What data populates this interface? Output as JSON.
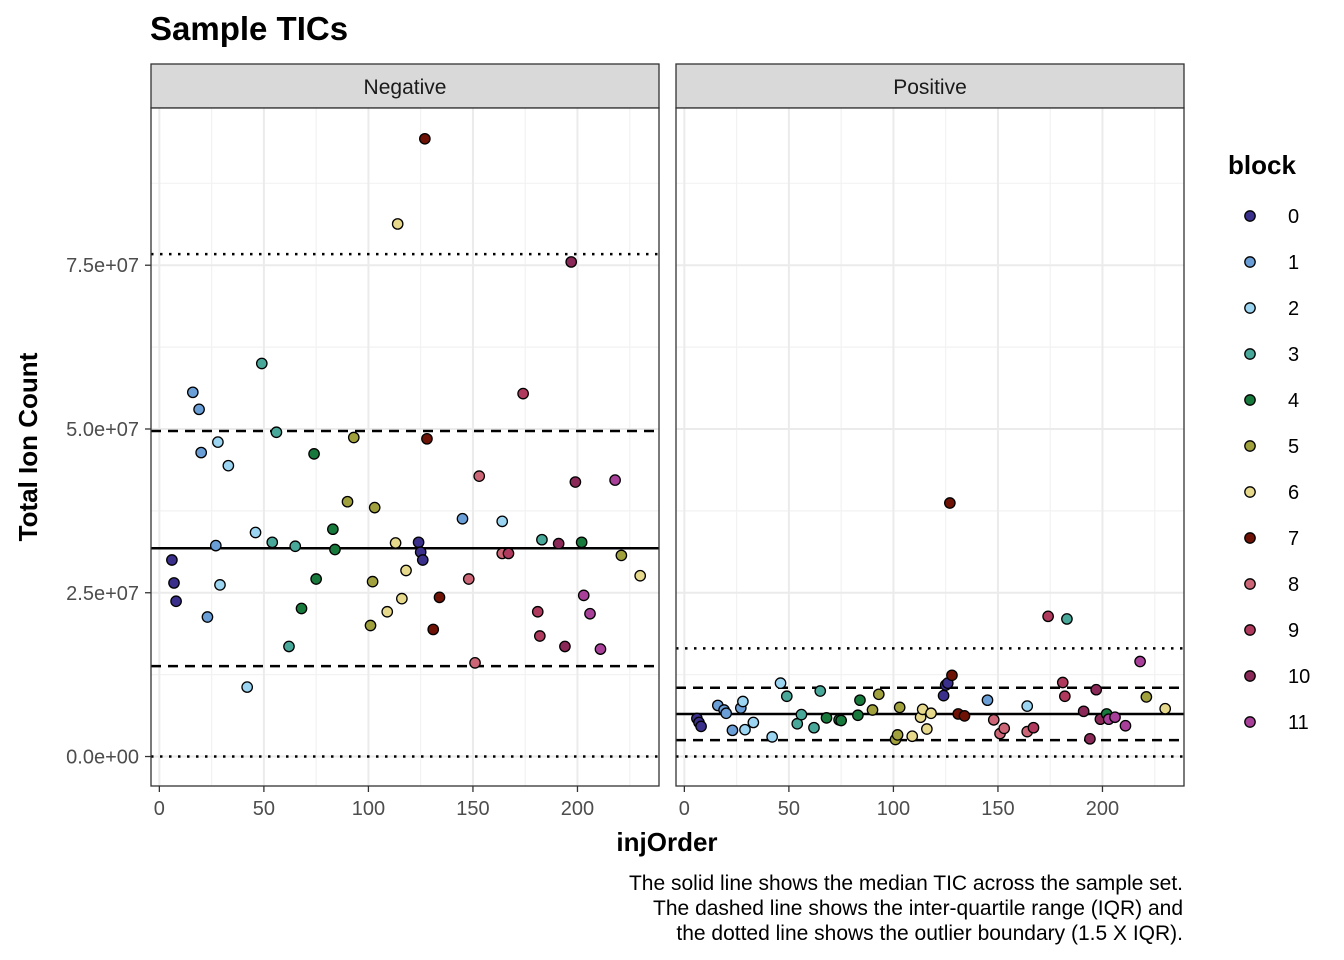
{
  "chart_data": {
    "type": "scatter",
    "title": "Sample TICs",
    "xlabel": "injOrder",
    "ylabel": "Total Ion Count",
    "x_ticks": [
      0,
      50,
      100,
      150,
      200
    ],
    "x_tick_labels": [
      "0",
      "50",
      "100",
      "150",
      "200"
    ],
    "xlim": [
      -4,
      239
    ],
    "y_ticks": [
      0,
      25000000,
      50000000,
      75000000
    ],
    "y_tick_labels": [
      "0.0e+00",
      "2.5e+07",
      "5.0e+07",
      "7.5e+07"
    ],
    "ylim": [
      -4500000,
      99000000
    ],
    "grid": true,
    "legend": {
      "title": "block",
      "position": "right",
      "items": [
        {
          "label": "0",
          "color": "#3A2F8A"
        },
        {
          "label": "1",
          "color": "#6A9ED6"
        },
        {
          "label": "2",
          "color": "#9BD5F2"
        },
        {
          "label": "3",
          "color": "#48A99A"
        },
        {
          "label": "4",
          "color": "#177A3C"
        },
        {
          "label": "5",
          "color": "#A0A03C"
        },
        {
          "label": "6",
          "color": "#E7D98C"
        },
        {
          "label": "7",
          "color": "#6E1206"
        },
        {
          "label": "8",
          "color": "#CC6677"
        },
        {
          "label": "9",
          "color": "#B03A5E"
        },
        {
          "label": "10",
          "color": "#8A2858"
        },
        {
          "label": "11",
          "color": "#A8409A"
        }
      ]
    },
    "caption": [
      "The solid line shows the median TIC across the sample set.",
      "The dashed line shows the inter-quartile range (IQR) and",
      "the dotted line shows the outlier boundary (1.5 X IQR)."
    ],
    "panels": [
      {
        "label": "Negative",
        "median": 31800000,
        "iqr": [
          13800000,
          49700000
        ],
        "outlier_bounds": [
          0,
          76700000
        ],
        "points": [
          {
            "x": 6,
            "y": 30000000,
            "block": "0"
          },
          {
            "x": 7,
            "y": 26500000,
            "block": "0"
          },
          {
            "x": 8,
            "y": 23700000,
            "block": "0"
          },
          {
            "x": 16,
            "y": 55600000,
            "block": "1"
          },
          {
            "x": 19,
            "y": 53000000,
            "block": "1"
          },
          {
            "x": 20,
            "y": 46400000,
            "block": "1"
          },
          {
            "x": 23,
            "y": 21300000,
            "block": "1"
          },
          {
            "x": 27,
            "y": 32200000,
            "block": "1"
          },
          {
            "x": 28,
            "y": 48000000,
            "block": "2"
          },
          {
            "x": 29,
            "y": 26200000,
            "block": "2"
          },
          {
            "x": 33,
            "y": 44400000,
            "block": "2"
          },
          {
            "x": 42,
            "y": 10600000,
            "block": "2"
          },
          {
            "x": 46,
            "y": 34200000,
            "block": "2"
          },
          {
            "x": 49,
            "y": 60000000,
            "block": "3"
          },
          {
            "x": 54,
            "y": 32700000,
            "block": "3"
          },
          {
            "x": 56,
            "y": 49500000,
            "block": "3"
          },
          {
            "x": 62,
            "y": 16800000,
            "block": "3"
          },
          {
            "x": 65,
            "y": 32100000,
            "block": "3"
          },
          {
            "x": 68,
            "y": 22600000,
            "block": "4"
          },
          {
            "x": 74,
            "y": 46200000,
            "block": "4"
          },
          {
            "x": 75,
            "y": 27100000,
            "block": "4"
          },
          {
            "x": 83,
            "y": 34700000,
            "block": "4"
          },
          {
            "x": 84,
            "y": 31600000,
            "block": "4"
          },
          {
            "x": 90,
            "y": 38900000,
            "block": "5"
          },
          {
            "x": 93,
            "y": 48700000,
            "block": "5"
          },
          {
            "x": 101,
            "y": 20000000,
            "block": "5"
          },
          {
            "x": 102,
            "y": 26700000,
            "block": "5"
          },
          {
            "x": 103,
            "y": 38000000,
            "block": "5"
          },
          {
            "x": 109,
            "y": 22100000,
            "block": "6"
          },
          {
            "x": 113,
            "y": 32600000,
            "block": "6"
          },
          {
            "x": 114,
            "y": 81300000,
            "block": "6"
          },
          {
            "x": 116,
            "y": 24100000,
            "block": "6"
          },
          {
            "x": 118,
            "y": 28400000,
            "block": "6"
          },
          {
            "x": 124,
            "y": 32700000,
            "block": "0"
          },
          {
            "x": 125,
            "y": 31200000,
            "block": "0"
          },
          {
            "x": 126,
            "y": 30000000,
            "block": "0"
          },
          {
            "x": 127,
            "y": 94300000,
            "block": "7"
          },
          {
            "x": 128,
            "y": 48500000,
            "block": "7"
          },
          {
            "x": 131,
            "y": 19400000,
            "block": "7"
          },
          {
            "x": 134,
            "y": 24300000,
            "block": "7"
          },
          {
            "x": 145,
            "y": 36300000,
            "block": "1"
          },
          {
            "x": 148,
            "y": 27100000,
            "block": "8"
          },
          {
            "x": 151,
            "y": 14300000,
            "block": "8"
          },
          {
            "x": 153,
            "y": 42800000,
            "block": "8"
          },
          {
            "x": 164,
            "y": 35900000,
            "block": "2"
          },
          {
            "x": 164,
            "y": 31000000,
            "block": "8"
          },
          {
            "x": 167,
            "y": 31000000,
            "block": "9"
          },
          {
            "x": 174,
            "y": 55400000,
            "block": "9"
          },
          {
            "x": 181,
            "y": 22100000,
            "block": "9"
          },
          {
            "x": 182,
            "y": 18400000,
            "block": "9"
          },
          {
            "x": 183,
            "y": 33100000,
            "block": "3"
          },
          {
            "x": 191,
            "y": 32500000,
            "block": "10"
          },
          {
            "x": 194,
            "y": 16800000,
            "block": "10"
          },
          {
            "x": 197,
            "y": 75500000,
            "block": "10"
          },
          {
            "x": 199,
            "y": 41900000,
            "block": "10"
          },
          {
            "x": 202,
            "y": 32700000,
            "block": "4"
          },
          {
            "x": 203,
            "y": 24600000,
            "block": "11"
          },
          {
            "x": 206,
            "y": 21800000,
            "block": "11"
          },
          {
            "x": 211,
            "y": 16400000,
            "block": "11"
          },
          {
            "x": 218,
            "y": 42200000,
            "block": "11"
          },
          {
            "x": 221,
            "y": 30700000,
            "block": "5"
          },
          {
            "x": 230,
            "y": 27600000,
            "block": "6"
          }
        ]
      },
      {
        "label": "Positive",
        "median": 6500000,
        "iqr": [
          2500000,
          10500000
        ],
        "outlier_bounds": [
          0,
          16500000
        ],
        "points": [
          {
            "x": 6,
            "y": 5800000,
            "block": "0"
          },
          {
            "x": 7,
            "y": 5200000,
            "block": "0"
          },
          {
            "x": 8,
            "y": 4600000,
            "block": "0"
          },
          {
            "x": 16,
            "y": 7800000,
            "block": "1"
          },
          {
            "x": 19,
            "y": 7100000,
            "block": "1"
          },
          {
            "x": 20,
            "y": 6600000,
            "block": "1"
          },
          {
            "x": 23,
            "y": 4000000,
            "block": "1"
          },
          {
            "x": 27,
            "y": 7400000,
            "block": "1"
          },
          {
            "x": 28,
            "y": 8400000,
            "block": "2"
          },
          {
            "x": 29,
            "y": 4100000,
            "block": "2"
          },
          {
            "x": 33,
            "y": 5200000,
            "block": "2"
          },
          {
            "x": 42,
            "y": 3000000,
            "block": "2"
          },
          {
            "x": 46,
            "y": 11200000,
            "block": "2"
          },
          {
            "x": 49,
            "y": 9200000,
            "block": "3"
          },
          {
            "x": 54,
            "y": 5000000,
            "block": "3"
          },
          {
            "x": 56,
            "y": 6400000,
            "block": "3"
          },
          {
            "x": 62,
            "y": 4400000,
            "block": "3"
          },
          {
            "x": 65,
            "y": 10000000,
            "block": "3"
          },
          {
            "x": 68,
            "y": 5900000,
            "block": "4"
          },
          {
            "x": 74,
            "y": 5600000,
            "block": "4"
          },
          {
            "x": 75,
            "y": 5500000,
            "block": "4"
          },
          {
            "x": 83,
            "y": 6300000,
            "block": "4"
          },
          {
            "x": 84,
            "y": 8600000,
            "block": "4"
          },
          {
            "x": 90,
            "y": 7100000,
            "block": "5"
          },
          {
            "x": 93,
            "y": 9500000,
            "block": "5"
          },
          {
            "x": 101,
            "y": 2600000,
            "block": "5"
          },
          {
            "x": 102,
            "y": 3300000,
            "block": "5"
          },
          {
            "x": 103,
            "y": 7500000,
            "block": "5"
          },
          {
            "x": 109,
            "y": 3100000,
            "block": "6"
          },
          {
            "x": 113,
            "y": 6000000,
            "block": "6"
          },
          {
            "x": 114,
            "y": 7200000,
            "block": "6"
          },
          {
            "x": 116,
            "y": 4200000,
            "block": "6"
          },
          {
            "x": 118,
            "y": 6600000,
            "block": "6"
          },
          {
            "x": 124,
            "y": 9300000,
            "block": "0"
          },
          {
            "x": 125,
            "y": 10900000,
            "block": "0"
          },
          {
            "x": 126,
            "y": 11200000,
            "block": "0"
          },
          {
            "x": 127,
            "y": 38700000,
            "block": "7"
          },
          {
            "x": 128,
            "y": 12400000,
            "block": "7"
          },
          {
            "x": 131,
            "y": 6500000,
            "block": "7"
          },
          {
            "x": 134,
            "y": 6200000,
            "block": "7"
          },
          {
            "x": 145,
            "y": 8600000,
            "block": "1"
          },
          {
            "x": 148,
            "y": 5600000,
            "block": "8"
          },
          {
            "x": 151,
            "y": 3500000,
            "block": "8"
          },
          {
            "x": 153,
            "y": 4300000,
            "block": "8"
          },
          {
            "x": 164,
            "y": 7700000,
            "block": "2"
          },
          {
            "x": 164,
            "y": 3800000,
            "block": "8"
          },
          {
            "x": 167,
            "y": 4400000,
            "block": "9"
          },
          {
            "x": 174,
            "y": 21400000,
            "block": "9"
          },
          {
            "x": 181,
            "y": 11300000,
            "block": "9"
          },
          {
            "x": 182,
            "y": 9200000,
            "block": "9"
          },
          {
            "x": 183,
            "y": 21000000,
            "block": "3"
          },
          {
            "x": 191,
            "y": 6900000,
            "block": "10"
          },
          {
            "x": 194,
            "y": 2700000,
            "block": "10"
          },
          {
            "x": 197,
            "y": 10200000,
            "block": "10"
          },
          {
            "x": 199,
            "y": 5700000,
            "block": "10"
          },
          {
            "x": 202,
            "y": 6500000,
            "block": "4"
          },
          {
            "x": 203,
            "y": 5700000,
            "block": "11"
          },
          {
            "x": 206,
            "y": 6000000,
            "block": "11"
          },
          {
            "x": 211,
            "y": 4700000,
            "block": "11"
          },
          {
            "x": 218,
            "y": 14500000,
            "block": "11"
          },
          {
            "x": 221,
            "y": 9100000,
            "block": "5"
          },
          {
            "x": 230,
            "y": 7300000,
            "block": "6"
          }
        ]
      }
    ]
  }
}
